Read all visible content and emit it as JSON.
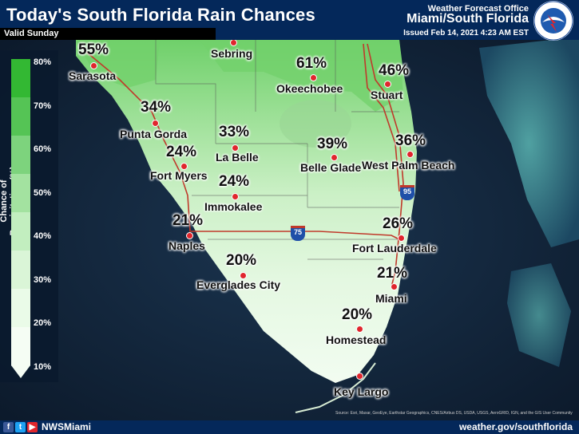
{
  "header": {
    "title": "Today's South Florida Rain Chances",
    "valid": "Valid Sunday",
    "office_label": "Weather Forecast Office",
    "office_name": "Miami/South Florida",
    "issued": "Issued Feb 14, 2021 4:23 AM EST",
    "logo_text": "NATIONAL WEATHER SERVICE"
  },
  "legend": {
    "title": "Chance of Precipitation (%)",
    "ticks": [
      "80%",
      "70%",
      "60%",
      "50%",
      "40%",
      "30%",
      "20%",
      "10%"
    ],
    "colors": [
      "#33b833",
      "#55c455",
      "#7dd37d",
      "#a3e2a0",
      "#c2eebf",
      "#daf5d7",
      "#eafbe8",
      "#f5fdf4"
    ]
  },
  "cities": [
    {
      "name": "Sarasota",
      "pct": "55%"
    },
    {
      "name": "Sebring",
      "pct": ""
    },
    {
      "name": "Okeechobee",
      "pct": "61%"
    },
    {
      "name": "Stuart",
      "pct": "46%"
    },
    {
      "name": "Punta Gorda",
      "pct": "34%"
    },
    {
      "name": "La Belle",
      "pct": "33%"
    },
    {
      "name": "Fort Myers",
      "pct": "24%"
    },
    {
      "name": "Belle Glade",
      "pct": "39%"
    },
    {
      "name": "West Palm Beach",
      "pct": "36%"
    },
    {
      "name": "Immokalee",
      "pct": "24%"
    },
    {
      "name": "Naples",
      "pct": "21%"
    },
    {
      "name": "Fort Lauderdale",
      "pct": "26%"
    },
    {
      "name": "Everglades City",
      "pct": "20%"
    },
    {
      "name": "Miami",
      "pct": "21%"
    },
    {
      "name": "Homestead",
      "pct": "20%"
    },
    {
      "name": "Key Largo",
      "pct": ""
    }
  ],
  "highways": [
    "95",
    "75"
  ],
  "map_credits": "Source: Esri, Maxar, GeoEye, Earthstar Geographics, CNES/Airbus DS, USDA, USGS, AeroGRID, IGN, and the GIS User Community",
  "footer": {
    "social_handle": "NWSMiami",
    "website": "weather.gov/southflorida"
  },
  "colors": {
    "header_bg": "#04285a",
    "city_marker": "#e0262d",
    "highway": "#c0392b"
  }
}
